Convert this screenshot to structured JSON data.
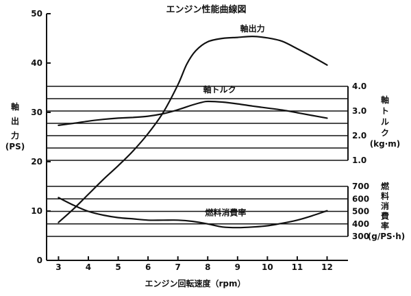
{
  "chart_data": {
    "type": "line",
    "title": "エンジン性能曲線図",
    "xlabel": "エンジン回転速度（rpm）",
    "x_ticks": [
      "3",
      "4",
      "5",
      "6",
      "7",
      "8",
      "9",
      "10",
      "11",
      "12"
    ],
    "xlim": [
      2.6,
      12.7
    ],
    "axes": {
      "power": {
        "label_chars": [
          "軸",
          "出",
          "力"
        ],
        "unit": "(PS)",
        "ylim": [
          0,
          50
        ],
        "ticks": [
          "0",
          "10",
          "20",
          "30",
          "40",
          "50"
        ]
      },
      "torque": {
        "label_chars": [
          "軸",
          "ト",
          "ル",
          "ク"
        ],
        "unit": "(kg·m)",
        "ylim": [
          1.0,
          4.0
        ],
        "ticks": [
          "4.0",
          "3.0",
          "2.0",
          "1.0"
        ]
      },
      "fuel": {
        "label_chars": [
          "燃",
          "料",
          "消",
          "費",
          "率"
        ],
        "unit": "(g/PS·h)",
        "ylim": [
          300,
          700
        ],
        "ticks": [
          "700",
          "600",
          "500",
          "400",
          "300"
        ]
      }
    },
    "series": [
      {
        "name": "軸出力",
        "axis": "power",
        "x": [
          3,
          3.5,
          4,
          4.5,
          5,
          5.5,
          6,
          6.5,
          7,
          7.3,
          7.6,
          8,
          8.5,
          9,
          9.5,
          10,
          10.5,
          11,
          11.5,
          12
        ],
        "y": [
          7.7,
          10.4,
          13.4,
          16.4,
          19.2,
          22.2,
          25.7,
          29.9,
          35.6,
          39.8,
          42.5,
          44.3,
          45.0,
          45.2,
          45.4,
          45.1,
          44.4,
          42.9,
          41.3,
          39.6
        ]
      },
      {
        "name": "軸トルク",
        "axis": "torque",
        "x": [
          3,
          3.5,
          4,
          4.5,
          5,
          5.5,
          6,
          6.5,
          7,
          7.5,
          7.8,
          8,
          8.5,
          9,
          9.5,
          10,
          10.5,
          11,
          11.5,
          12
        ],
        "y": [
          2.42,
          2.5,
          2.59,
          2.66,
          2.71,
          2.74,
          2.79,
          2.89,
          3.05,
          3.25,
          3.35,
          3.39,
          3.36,
          3.29,
          3.2,
          3.12,
          3.04,
          2.93,
          2.82,
          2.71
        ]
      },
      {
        "name": "燃料消費率",
        "axis": "fuel",
        "x": [
          3,
          3.5,
          4,
          4.5,
          5,
          5.5,
          6,
          6.5,
          7,
          7.5,
          8,
          8.5,
          9,
          9.5,
          10,
          10.5,
          11,
          11.5,
          12
        ],
        "y": [
          610,
          550,
          500,
          470,
          450,
          440,
          430,
          430,
          430,
          420,
          400,
          375,
          370,
          375,
          385,
          405,
          430,
          465,
          505
        ]
      }
    ]
  }
}
